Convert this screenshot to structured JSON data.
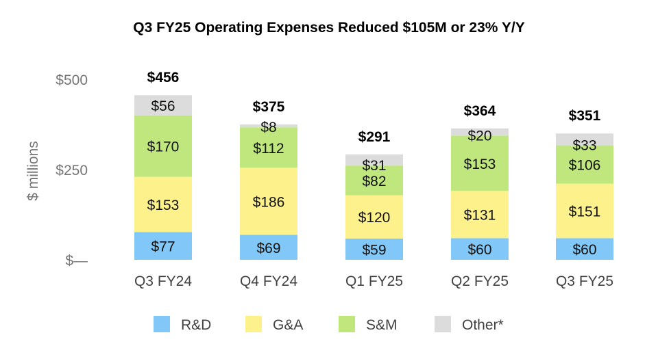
{
  "chart_data": {
    "type": "bar",
    "stacked": true,
    "title": "Q3 FY25 Operating Expenses Reduced $105M or 23% Y/Y",
    "ylabel": "$ millions",
    "ylim": [
      0,
      500
    ],
    "yticks": [
      {
        "value": 0,
        "label": "$—"
      },
      {
        "value": 250,
        "label": "$250"
      },
      {
        "value": 500,
        "label": "$500"
      }
    ],
    "categories": [
      "Q3 FY24",
      "Q4 FY24",
      "Q1 FY25",
      "Q2 FY25",
      "Q3 FY25"
    ],
    "series": [
      {
        "name": "R&D",
        "color": "#81C8F8",
        "values": [
          77,
          69,
          59,
          60,
          60
        ],
        "labels": [
          "$77",
          "$69",
          "$59",
          "$60",
          "$60"
        ]
      },
      {
        "name": "G&A",
        "color": "#FDF18C",
        "values": [
          153,
          186,
          120,
          131,
          151
        ],
        "labels": [
          "$153",
          "$186",
          "$120",
          "$131",
          "$151"
        ]
      },
      {
        "name": "S&M",
        "color": "#BFE77E",
        "values": [
          170,
          112,
          82,
          153,
          106
        ],
        "labels": [
          "$170",
          "$112",
          "$82",
          "$153",
          "$106"
        ]
      },
      {
        "name": "Other*",
        "color": "#DCDCDC",
        "values": [
          56,
          8,
          31,
          20,
          33
        ],
        "labels": [
          "$56",
          "$8",
          "$31",
          "$20",
          "$33"
        ]
      }
    ],
    "totals": [
      456,
      375,
      291,
      364,
      351
    ],
    "total_labels": [
      "$456",
      "$375",
      "$291",
      "$364",
      "$351"
    ],
    "legend": "bottom"
  }
}
